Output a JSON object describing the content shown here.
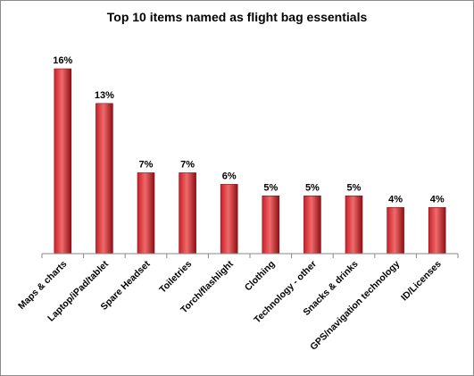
{
  "chart_data": {
    "type": "bar",
    "title": "Top 10 items named as flight bag essentials",
    "xlabel": "",
    "ylabel": "",
    "categories": [
      "Maps & charts",
      "Laptop/iPad/tablet",
      "Spare Headset",
      "Toiletries",
      "Torch/flashlight",
      "Clothing",
      "Technology - other",
      "Snacks & drinks",
      "GPS/navigation technology",
      "ID/Licenses"
    ],
    "values": [
      16,
      13,
      7,
      7,
      6,
      5,
      5,
      5,
      4,
      4
    ],
    "value_labels": [
      "16%",
      "13%",
      "7%",
      "7%",
      "6%",
      "5%",
      "5%",
      "5%",
      "4%",
      "4%"
    ],
    "ylim": [
      0,
      16
    ],
    "grid": false,
    "legend": "none",
    "colors": {
      "bar": "#c8202a",
      "bar_highlight": "#f06a6a",
      "bar_dark": "#8e1016",
      "axis": "#888888"
    }
  }
}
